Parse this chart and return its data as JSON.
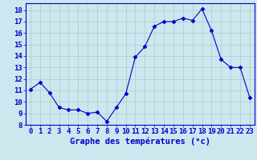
{
  "x": [
    0,
    1,
    2,
    3,
    4,
    5,
    6,
    7,
    8,
    9,
    10,
    11,
    12,
    13,
    14,
    15,
    16,
    17,
    18,
    19,
    20,
    21,
    22,
    23
  ],
  "y": [
    11.1,
    11.7,
    10.8,
    9.5,
    9.3,
    9.3,
    9.0,
    9.1,
    8.3,
    9.5,
    10.7,
    13.9,
    14.8,
    16.6,
    17.0,
    17.0,
    17.3,
    17.1,
    18.1,
    16.2,
    13.7,
    13.0,
    13.0,
    10.4
  ],
  "line_color": "#0000cc",
  "marker": "D",
  "marker_size": 2.5,
  "bg_color": "#cce8ee",
  "grid_color": "#aacccc",
  "xlabel": "Graphe des températures (°c)",
  "ytick_labels": [
    "8",
    "9",
    "10",
    "11",
    "12",
    "13",
    "14",
    "15",
    "16",
    "17",
    "18"
  ],
  "ytick_vals": [
    8,
    9,
    10,
    11,
    12,
    13,
    14,
    15,
    16,
    17,
    18
  ],
  "xlim": [
    -0.5,
    23.5
  ],
  "ylim": [
    8,
    18.6
  ],
  "tick_color": "#0000cc",
  "tick_fontsize": 6.5,
  "label_fontsize": 7.5
}
